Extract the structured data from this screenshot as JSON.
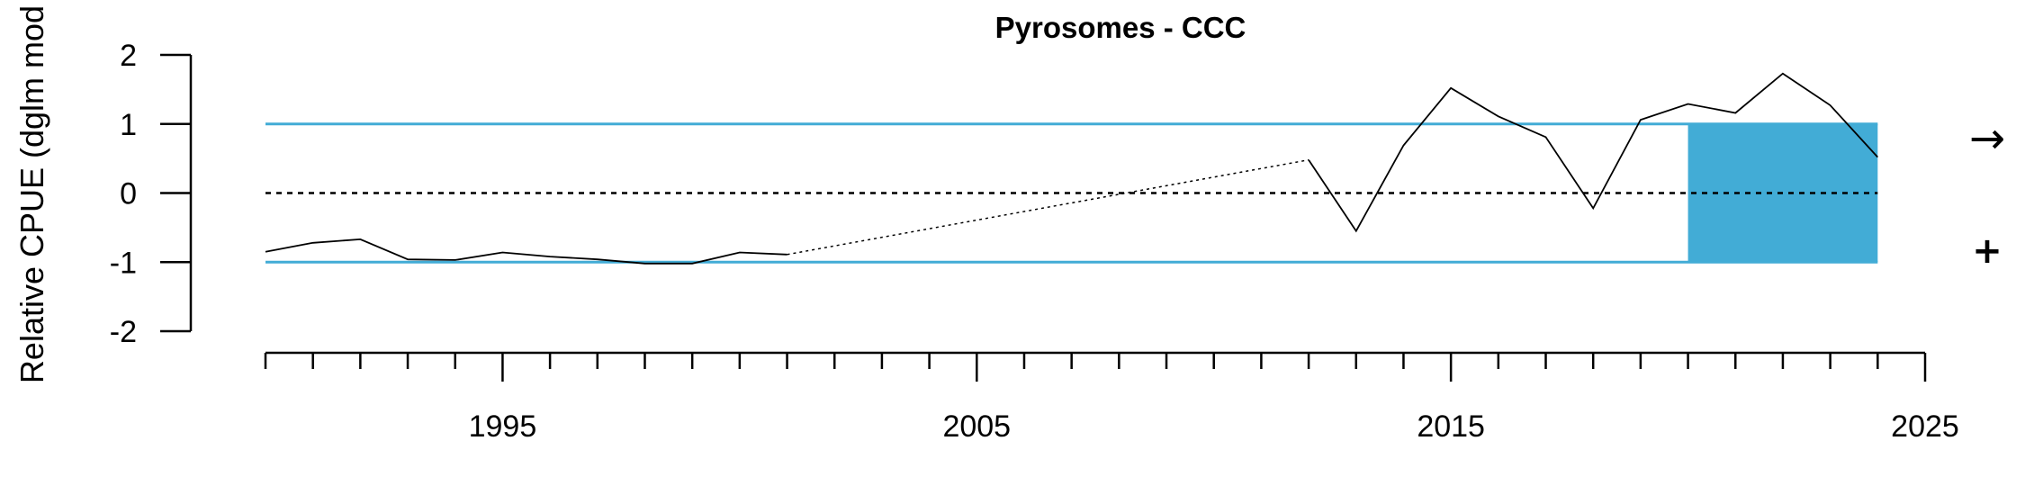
{
  "chart_data": {
    "type": "line",
    "title": "Pyrosomes - CCC",
    "ylabel": "Relative CPUE (dglm mod",
    "xlabel": "",
    "xlim": [
      1990,
      2025
    ],
    "ylim": [
      -2,
      2
    ],
    "y_ticks": [
      2,
      1,
      0,
      -1,
      -2
    ],
    "x_tick_labels": [
      1995,
      2005,
      2015,
      2025
    ],
    "x_minor_ticks": [
      1990,
      1991,
      1992,
      1993,
      1994,
      1995,
      1996,
      1997,
      1998,
      1999,
      2000,
      2001,
      2002,
      2003,
      2004,
      2005,
      2006,
      2007,
      2008,
      2009,
      2010,
      2011,
      2012,
      2013,
      2014,
      2015,
      2016,
      2017,
      2018,
      2019,
      2020,
      2021,
      2022,
      2023,
      2024,
      2025
    ],
    "series": [
      {
        "values": [
          {
            "x": 1990,
            "y": -0.85
          },
          {
            "x": 1991,
            "y": -0.72
          },
          {
            "x": 1992,
            "y": -0.67
          },
          {
            "x": 1993,
            "y": -0.96
          },
          {
            "x": 1994,
            "y": -0.97
          },
          {
            "x": 1995,
            "y": -0.86
          },
          {
            "x": 1996,
            "y": -0.92
          },
          {
            "x": 1997,
            "y": -0.96
          },
          {
            "x": 1998,
            "y": -1.02
          },
          {
            "x": 1999,
            "y": -1.02
          },
          {
            "x": 2000,
            "y": -0.86
          },
          {
            "x": 2001,
            "y": -0.89
          }
        ]
      },
      {
        "values": [
          {
            "x": 2012,
            "y": 0.48
          },
          {
            "x": 2013,
            "y": -0.55
          },
          {
            "x": 2014,
            "y": 0.69
          },
          {
            "x": 2015,
            "y": 1.52
          },
          {
            "x": 2016,
            "y": 1.11
          },
          {
            "x": 2017,
            "y": 0.81
          },
          {
            "x": 2018,
            "y": -0.22
          },
          {
            "x": 2019,
            "y": 1.06
          },
          {
            "x": 2020,
            "y": 1.29
          },
          {
            "x": 2021,
            "y": 1.16
          },
          {
            "x": 2022,
            "y": 1.73
          },
          {
            "x": 2023,
            "y": 1.27
          },
          {
            "x": 2024,
            "y": 0.52
          }
        ]
      }
    ],
    "gap_segment": {
      "from": {
        "x": 2001,
        "y": -0.89
      },
      "to": {
        "x": 2012,
        "y": 0.48
      },
      "style": "dotted"
    },
    "reference_lines": [
      {
        "y": 1,
        "color": "#42ACD6"
      },
      {
        "y": 0,
        "color": "#000000",
        "style": "dashed"
      },
      {
        "y": -1,
        "color": "#42ACD6"
      }
    ],
    "shaded_region": {
      "x_start": 2020,
      "x_end": 2024,
      "y_start": -1,
      "y_end": 1,
      "color": "#42ACD6"
    },
    "trend_indicator": {
      "mean_symbol": "→",
      "sd_symbol": "+"
    },
    "grid": false
  }
}
